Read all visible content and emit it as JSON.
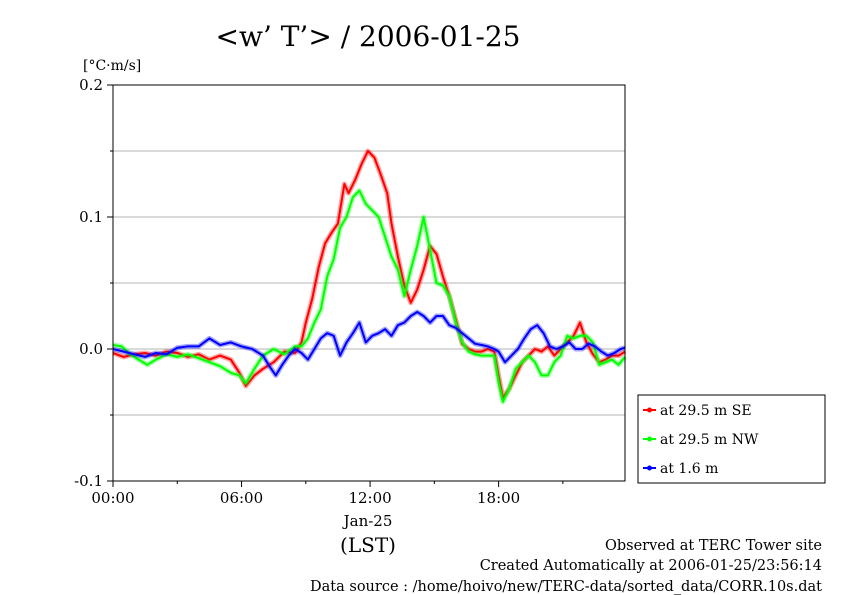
{
  "chart_data": {
    "type": "line",
    "title": "<w’ T’> / 2006-01-25",
    "y_unit": "[°C·m/s]",
    "xlabel_date": "Jan-25",
    "xlabel": "(LST)",
    "xlim_hours": [
      0,
      23.9
    ],
    "ylim": [
      -0.1,
      0.2
    ],
    "y_ticks": [
      {
        "value": 0.2,
        "label": "0.2"
      },
      {
        "value": 0.1,
        "label": "0.1"
      },
      {
        "value": 0.0,
        "label": "0.0"
      },
      {
        "value": -0.1,
        "label": "-0.1"
      }
    ],
    "x_ticks": [
      {
        "value": 0,
        "label": "00:00"
      },
      {
        "value": 6,
        "label": "06:00"
      },
      {
        "value": 12,
        "label": "12:00"
      },
      {
        "value": 18,
        "label": "18:00"
      }
    ],
    "grid": "horizontal",
    "legend_position": "right",
    "series": [
      {
        "name": "at 29.5 m SE",
        "color": "#ff0000",
        "x": [
          0,
          0.5,
          1,
          1.5,
          2,
          2.5,
          3,
          3.5,
          4,
          4.5,
          5,
          5.5,
          5.9,
          6.2,
          6.6,
          7,
          7.5,
          8,
          8.5,
          8.8,
          9,
          9.3,
          9.6,
          9.9,
          10.2,
          10.5,
          10.8,
          11,
          11.3,
          11.6,
          11.9,
          12.2,
          12.5,
          12.8,
          13,
          13.3,
          13.6,
          13.9,
          14.2,
          14.5,
          14.8,
          15.1,
          15.4,
          15.7,
          16,
          16.3,
          16.6,
          16.9,
          17.2,
          17.5,
          17.8,
          18,
          18.2,
          18.5,
          18.8,
          19.1,
          19.4,
          19.7,
          20,
          20.3,
          20.6,
          20.9,
          21.2,
          21.5,
          21.8,
          22.1,
          22.4,
          22.7,
          23,
          23.3,
          23.6,
          23.9
        ],
        "values": [
          -0.003,
          -0.006,
          -0.004,
          -0.003,
          -0.005,
          -0.002,
          -0.003,
          -0.006,
          -0.004,
          -0.008,
          -0.005,
          -0.008,
          -0.018,
          -0.028,
          -0.02,
          -0.015,
          -0.01,
          -0.002,
          -0.003,
          0.005,
          0.02,
          0.038,
          0.062,
          0.08,
          0.088,
          0.095,
          0.125,
          0.118,
          0.128,
          0.14,
          0.15,
          0.145,
          0.132,
          0.118,
          0.095,
          0.07,
          0.048,
          0.035,
          0.045,
          0.06,
          0.078,
          0.072,
          0.055,
          0.04,
          0.022,
          0.004,
          0.0,
          -0.002,
          -0.002,
          0.0,
          -0.002,
          -0.02,
          -0.037,
          -0.03,
          -0.02,
          -0.01,
          -0.005,
          0.0,
          -0.002,
          0.002,
          -0.005,
          0.0,
          0.005,
          0.01,
          0.02,
          0.005,
          -0.004,
          -0.01,
          -0.008,
          -0.005,
          -0.005,
          -0.002
        ]
      },
      {
        "name": "at 29.5 m NW",
        "color": "#00ff00",
        "x": [
          0,
          0.4,
          0.8,
          1.2,
          1.6,
          2,
          2.5,
          3,
          3.5,
          4,
          4.5,
          5,
          5.5,
          5.9,
          6.2,
          6.6,
          7,
          7.5,
          8,
          8.5,
          8.8,
          9.1,
          9.4,
          9.7,
          10,
          10.3,
          10.6,
          10.9,
          11.2,
          11.5,
          11.8,
          12.1,
          12.4,
          12.7,
          13,
          13.3,
          13.6,
          13.9,
          14.2,
          14.5,
          14.8,
          15.1,
          15.4,
          15.7,
          16,
          16.3,
          16.6,
          16.9,
          17.2,
          17.5,
          17.8,
          18,
          18.2,
          18.5,
          18.8,
          19.1,
          19.4,
          19.7,
          20,
          20.3,
          20.6,
          20.9,
          21.2,
          21.5,
          21.8,
          22.1,
          22.4,
          22.7,
          23,
          23.3,
          23.6,
          23.9
        ],
        "values": [
          0.003,
          0.002,
          -0.004,
          -0.008,
          -0.012,
          -0.008,
          -0.004,
          -0.006,
          -0.004,
          -0.007,
          -0.01,
          -0.013,
          -0.018,
          -0.02,
          -0.026,
          -0.015,
          -0.005,
          0.0,
          -0.004,
          0.002,
          0.002,
          0.008,
          0.02,
          0.03,
          0.055,
          0.068,
          0.092,
          0.1,
          0.115,
          0.12,
          0.11,
          0.105,
          0.1,
          0.085,
          0.07,
          0.06,
          0.04,
          0.06,
          0.078,
          0.1,
          0.075,
          0.05,
          0.048,
          0.04,
          0.02,
          0.005,
          -0.002,
          -0.004,
          -0.005,
          -0.005,
          -0.005,
          -0.025,
          -0.04,
          -0.03,
          -0.015,
          -0.01,
          -0.005,
          -0.01,
          -0.02,
          -0.02,
          -0.01,
          -0.005,
          0.01,
          0.008,
          0.01,
          0.01,
          0.005,
          -0.012,
          -0.01,
          -0.008,
          -0.012,
          -0.006
        ]
      },
      {
        "name": "at 1.6 m",
        "color": "#0000ff",
        "x": [
          0,
          0.5,
          1,
          1.5,
          2,
          2.5,
          3,
          3.5,
          4,
          4.5,
          5,
          5.5,
          6,
          6.5,
          7,
          7.3,
          7.6,
          7.9,
          8.2,
          8.5,
          8.8,
          9.1,
          9.4,
          9.7,
          10,
          10.3,
          10.6,
          10.9,
          11.2,
          11.5,
          11.8,
          12.1,
          12.4,
          12.7,
          13,
          13.3,
          13.6,
          13.9,
          14.2,
          14.5,
          14.8,
          15.1,
          15.4,
          15.7,
          16,
          16.3,
          16.6,
          16.9,
          17.2,
          17.5,
          17.8,
          18,
          18.3,
          18.6,
          18.9,
          19.2,
          19.5,
          19.8,
          20.1,
          20.4,
          20.7,
          21,
          21.3,
          21.6,
          21.9,
          22.2,
          22.5,
          22.8,
          23.1,
          23.4,
          23.7,
          23.9
        ],
        "values": [
          0.0,
          -0.002,
          -0.004,
          -0.006,
          -0.003,
          -0.004,
          0.001,
          0.002,
          0.002,
          0.008,
          0.003,
          0.005,
          0.002,
          0.0,
          -0.005,
          -0.013,
          -0.02,
          -0.012,
          -0.005,
          0.0,
          -0.003,
          -0.008,
          0.0,
          0.008,
          0.012,
          0.01,
          -0.005,
          0.005,
          0.012,
          0.02,
          0.005,
          0.01,
          0.012,
          0.015,
          0.01,
          0.018,
          0.02,
          0.025,
          0.028,
          0.025,
          0.02,
          0.025,
          0.025,
          0.018,
          0.016,
          0.012,
          0.008,
          0.004,
          0.003,
          0.002,
          0.0,
          -0.002,
          -0.01,
          -0.005,
          0.0,
          0.008,
          0.015,
          0.018,
          0.012,
          0.002,
          0.0,
          0.002,
          0.005,
          0.0,
          0.0,
          0.004,
          0.002,
          -0.002,
          -0.005,
          -0.003,
          0.0,
          0.001
        ]
      }
    ]
  },
  "footer": {
    "line1": "Observed at TERC Tower site",
    "line2": "Created Automatically at 2006-01-25/23:56:14",
    "line3": "Data source : /home/hoivo/new/TERC-data/sorted_data/CORR.10s.dat"
  }
}
